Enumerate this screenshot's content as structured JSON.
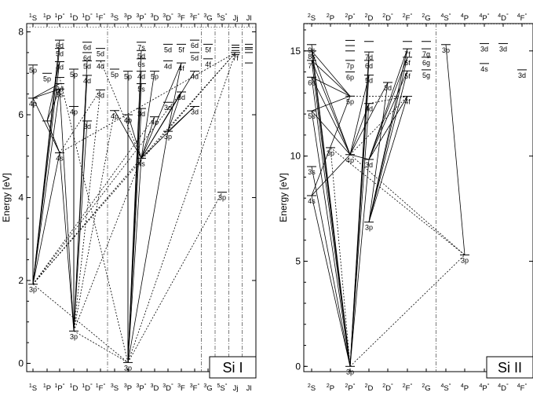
{
  "panels": [
    {
      "element": "Si I",
      "ylabel": "Energy [eV]",
      "yticks": [
        "0",
        "2",
        "4",
        "6",
        "8"
      ],
      "terms": [
        "1S",
        "1P",
        "1P°",
        "1D",
        "1D°",
        "1F°",
        "3S",
        "3P",
        "3P°",
        "3D",
        "3D°",
        "3F",
        "3F°",
        "3G",
        "5S°",
        "Jj",
        "Jl"
      ],
      "levels": [
        {
          "col": 0,
          "e": 1.91,
          "cfg": "3p"
        },
        {
          "col": 0,
          "e": 6.4,
          "cfg": "4p"
        },
        {
          "col": 0,
          "e": 7.2,
          "cfg": "5p"
        },
        {
          "col": 1,
          "e": 5.85,
          "cfg": ""
        },
        {
          "col": 1,
          "e": 7.0,
          "cfg": "5p"
        },
        {
          "col": 2,
          "e": 5.08,
          "cfg": "4s"
        },
        {
          "col": 2,
          "e": 6.62,
          "cfg": "5s"
        },
        {
          "col": 2,
          "e": 6.75,
          "cfg": "3d"
        },
        {
          "col": 2,
          "e": 6.9,
          "cfg": ""
        },
        {
          "col": 2,
          "e": 7.28,
          "cfg": "4d"
        },
        {
          "col": 2,
          "e": 7.6,
          "cfg": "5d"
        },
        {
          "col": 2,
          "e": 7.8,
          "cfg": "6d"
        },
        {
          "col": 3,
          "e": 0.78,
          "cfg": "3p"
        },
        {
          "col": 3,
          "e": 6.2,
          "cfg": "4p"
        },
        {
          "col": 3,
          "e": 7.1,
          "cfg": "5p"
        },
        {
          "col": 4,
          "e": 5.85,
          "cfg": "3d"
        },
        {
          "col": 4,
          "e": 6.95,
          "cfg": "4d"
        },
        {
          "col": 4,
          "e": 7.3,
          "cfg": "5d"
        },
        {
          "col": 4,
          "e": 7.5,
          "cfg": "6d"
        },
        {
          "col": 4,
          "e": 7.75,
          "cfg": "6d"
        },
        {
          "col": 5,
          "e": 6.6,
          "cfg": "3d"
        },
        {
          "col": 5,
          "e": 7.3,
          "cfg": "4d"
        },
        {
          "col": 5,
          "e": 7.6,
          "cfg": "5d"
        },
        {
          "col": 6,
          "e": 6.1,
          "cfg": "4p"
        },
        {
          "col": 6,
          "e": 7.1,
          "cfg": "5p"
        },
        {
          "col": 7,
          "e": 0.02,
          "cfg": "3p"
        },
        {
          "col": 7,
          "e": 6.0,
          "cfg": "4p"
        },
        {
          "col": 7,
          "e": 7.05,
          "cfg": "5p"
        },
        {
          "col": 8,
          "e": 4.95,
          "cfg": "4s"
        },
        {
          "col": 8,
          "e": 6.15,
          "cfg": "3d"
        },
        {
          "col": 8,
          "e": 6.75,
          "cfg": "5s"
        },
        {
          "col": 8,
          "e": 7.05,
          "cfg": "4d"
        },
        {
          "col": 8,
          "e": 7.35,
          "cfg": "6s"
        },
        {
          "col": 8,
          "e": 7.55,
          "cfg": "5d"
        },
        {
          "col": 8,
          "e": 7.75,
          "cfg": "7s"
        },
        {
          "col": 9,
          "e": 5.95,
          "cfg": "4p"
        },
        {
          "col": 9,
          "e": 7.05,
          "cfg": "5p"
        },
        {
          "col": 10,
          "e": 5.6,
          "cfg": "3p"
        },
        {
          "col": 10,
          "e": 6.3,
          "cfg": "3d"
        },
        {
          "col": 10,
          "e": 7.3,
          "cfg": "4d"
        },
        {
          "col": 10,
          "e": 7.7,
          "cfg": "5d"
        },
        {
          "col": 11,
          "e": 6.55,
          "cfg": "3d"
        },
        {
          "col": 11,
          "e": 7.25,
          "cfg": "4f"
        },
        {
          "col": 11,
          "e": 7.7,
          "cfg": "5f"
        },
        {
          "col": 12,
          "e": 6.2,
          "cfg": "3d"
        },
        {
          "col": 12,
          "e": 7.05,
          "cfg": "4d"
        },
        {
          "col": 12,
          "e": 7.5,
          "cfg": "5d"
        },
        {
          "col": 12,
          "e": 7.8,
          "cfg": "6d"
        },
        {
          "col": 13,
          "e": 7.35,
          "cfg": "4f"
        },
        {
          "col": 13,
          "e": 7.7,
          "cfg": "5f"
        },
        {
          "col": 14,
          "e": 4.13,
          "cfg": "3p"
        },
        {
          "col": 15,
          "e": 7.5,
          "cfg": "7f"
        }
      ],
      "transitions_solid": [
        [
          0,
          1
        ],
        [
          0,
          2
        ],
        [
          0,
          5
        ],
        [
          0,
          6
        ],
        [
          0,
          9
        ],
        [
          0,
          10
        ],
        [
          0,
          11
        ],
        [
          12,
          13
        ],
        [
          12,
          14
        ],
        [
          12,
          15
        ],
        [
          12,
          16
        ],
        [
          12,
          17
        ],
        [
          12,
          5
        ],
        [
          12,
          6
        ],
        [
          25,
          26
        ],
        [
          25,
          27
        ],
        [
          25,
          28
        ],
        [
          25,
          29
        ],
        [
          25,
          30
        ],
        [
          25,
          31
        ],
        [
          25,
          33
        ],
        [
          25,
          37
        ],
        [
          3,
          5
        ],
        [
          3,
          6
        ],
        [
          3,
          9
        ],
        [
          1,
          5
        ],
        [
          1,
          6
        ],
        [
          1,
          7
        ],
        [
          28,
          23
        ],
        [
          28,
          26
        ],
        [
          28,
          35
        ],
        [
          28,
          36
        ],
        [
          28,
          41
        ],
        [
          28,
          42
        ],
        [
          28,
          45
        ],
        [
          28,
          44
        ],
        [
          37,
          41
        ],
        [
          37,
          42
        ],
        [
          37,
          44
        ]
      ],
      "transitions_dotted": [
        [
          0,
          25
        ],
        [
          0,
          28
        ],
        [
          0,
          35
        ],
        [
          0,
          41
        ],
        [
          0,
          51
        ],
        [
          12,
          28
        ],
        [
          12,
          25
        ],
        [
          12,
          23
        ],
        [
          12,
          20
        ],
        [
          25,
          50
        ],
        [
          25,
          51
        ],
        [
          25,
          8
        ],
        [
          5,
          3
        ],
        [
          5,
          20
        ],
        [
          5,
          51
        ],
        [
          28,
          51
        ],
        [
          28,
          21
        ]
      ],
      "jj_marks": [
        7.45,
        7.55,
        7.62,
        7.68
      ],
      "jl_marks": [
        7.25,
        7.5,
        7.58,
        7.62,
        7.7
      ]
    },
    {
      "element": "Si II",
      "ylabel": "Energy [eV]",
      "yticks": [
        "0",
        "5",
        "10",
        "15"
      ],
      "terms": [
        "2S",
        "2P",
        "2P°",
        "2D",
        "2D°",
        "2F°",
        "2G",
        "4S°",
        "4P",
        "4P°",
        "4D°",
        "4F°"
      ],
      "levels": [
        {
          "col": 0,
          "e": 8.12,
          "cfg": "4s"
        },
        {
          "col": 0,
          "e": 9.5,
          "cfg": "3s"
        },
        {
          "col": 0,
          "e": 12.15,
          "cfg": "5s"
        },
        {
          "col": 0,
          "e": 13.75,
          "cfg": "6s"
        },
        {
          "col": 0,
          "e": 14.55,
          "cfg": "7s"
        },
        {
          "col": 0,
          "e": 15.0,
          "cfg": "8s"
        },
        {
          "col": 0,
          "e": 15.3,
          "cfg": "9s"
        },
        {
          "col": 1,
          "e": 10.4,
          "cfg": "3p"
        },
        {
          "col": 2,
          "e": 0.0,
          "cfg": "3p"
        },
        {
          "col": 2,
          "e": 10.07,
          "cfg": "4p"
        },
        {
          "col": 2,
          "e": 12.85,
          "cfg": "5p"
        },
        {
          "col": 2,
          "e": 14.0,
          "cfg": "6p"
        },
        {
          "col": 2,
          "e": 14.55,
          "cfg": "7p"
        },
        {
          "col": 2,
          "e": 15.0,
          "cfg": ""
        },
        {
          "col": 2,
          "e": 15.25,
          "cfg": ""
        },
        {
          "col": 2,
          "e": 15.5,
          "cfg": ""
        },
        {
          "col": 3,
          "e": 6.86,
          "cfg": "3p"
        },
        {
          "col": 3,
          "e": 9.84,
          "cfg": "3d"
        },
        {
          "col": 3,
          "e": 12.5,
          "cfg": "4d"
        },
        {
          "col": 3,
          "e": 13.85,
          "cfg": "5d"
        },
        {
          "col": 3,
          "e": 14.55,
          "cfg": "6d"
        },
        {
          "col": 3,
          "e": 14.95,
          "cfg": "7d"
        },
        {
          "col": 3,
          "e": 15.45,
          "cfg": ""
        },
        {
          "col": 4,
          "e": 13.5,
          "cfg": "3d"
        },
        {
          "col": 5,
          "e": 12.84,
          "cfg": "4f"
        },
        {
          "col": 5,
          "e": 14.05,
          "cfg": "5f"
        },
        {
          "col": 5,
          "e": 14.7,
          "cfg": "6f"
        },
        {
          "col": 5,
          "e": 15.1,
          "cfg": "7f"
        },
        {
          "col": 5,
          "e": 15.45,
          "cfg": ""
        },
        {
          "col": 6,
          "e": 14.1,
          "cfg": "5g"
        },
        {
          "col": 6,
          "e": 14.7,
          "cfg": "6g"
        },
        {
          "col": 6,
          "e": 15.1,
          "cfg": "7g"
        },
        {
          "col": 6,
          "e": 15.45,
          "cfg": ""
        },
        {
          "col": 7,
          "e": 15.3,
          "cfg": "3p"
        },
        {
          "col": 8,
          "e": 5.3,
          "cfg": "3p"
        },
        {
          "col": 9,
          "e": 15.35,
          "cfg": "3d"
        },
        {
          "col": 9,
          "e": 14.4,
          "cfg": "4s"
        },
        {
          "col": 10,
          "e": 15.35,
          "cfg": "3d"
        },
        {
          "col": 11,
          "e": 14.1,
          "cfg": "3d"
        }
      ],
      "transitions_solid": [
        [
          8,
          0
        ],
        [
          8,
          1
        ],
        [
          8,
          2
        ],
        [
          8,
          3
        ],
        [
          8,
          4
        ],
        [
          8,
          5
        ],
        [
          8,
          6
        ],
        [
          8,
          17
        ],
        [
          8,
          18
        ],
        [
          8,
          19
        ],
        [
          8,
          20
        ],
        [
          8,
          21
        ],
        [
          9,
          0
        ],
        [
          9,
          2
        ],
        [
          9,
          3
        ],
        [
          9,
          4
        ],
        [
          9,
          5
        ],
        [
          9,
          17
        ],
        [
          9,
          18
        ],
        [
          9,
          19
        ],
        [
          9,
          23
        ],
        [
          10,
          0
        ],
        [
          10,
          2
        ],
        [
          10,
          3
        ],
        [
          10,
          4
        ],
        [
          10,
          5
        ],
        [
          16,
          23
        ],
        [
          16,
          24
        ],
        [
          16,
          25
        ],
        [
          16,
          26
        ],
        [
          16,
          27
        ],
        [
          17,
          24
        ],
        [
          17,
          25
        ],
        [
          17,
          26
        ],
        [
          17,
          27
        ],
        [
          34,
          33
        ]
      ],
      "transitions_dotted": [
        [
          8,
          7
        ],
        [
          8,
          34
        ],
        [
          9,
          24
        ],
        [
          9,
          34
        ],
        [
          18,
          24
        ],
        [
          17,
          24
        ],
        [
          10,
          24
        ],
        [
          7,
          34
        ]
      ]
    }
  ]
}
